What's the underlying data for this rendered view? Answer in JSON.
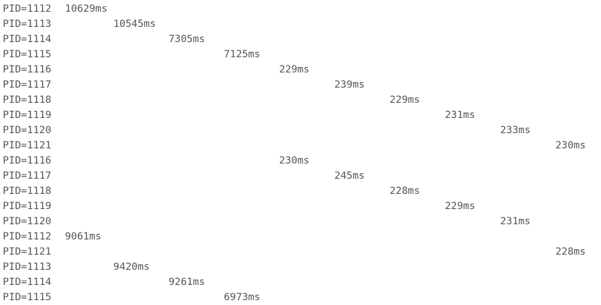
{
  "lines": [
    {
      "pid": "PID=1112",
      "time": "10629ms",
      "col": 0
    },
    {
      "pid": "PID=1113",
      "time": "10545ms",
      "col": 1
    },
    {
      "pid": "PID=1114",
      "time": "7305ms",
      "col": 2
    },
    {
      "pid": "PID=1115",
      "time": "7125ms",
      "col": 3
    },
    {
      "pid": "PID=1116",
      "time": "229ms",
      "col": 4
    },
    {
      "pid": "PID=1117",
      "time": "239ms",
      "col": 5
    },
    {
      "pid": "PID=1118",
      "time": "229ms",
      "col": 6
    },
    {
      "pid": "PID=1119",
      "time": "231ms",
      "col": 7
    },
    {
      "pid": "PID=1120",
      "time": "233ms",
      "col": 8
    },
    {
      "pid": "PID=1121",
      "time": "230ms",
      "col": 9
    },
    {
      "pid": "PID=1116",
      "time": "230ms",
      "col": 4
    },
    {
      "pid": "PID=1117",
      "time": "245ms",
      "col": 5
    },
    {
      "pid": "PID=1118",
      "time": "228ms",
      "col": 6
    },
    {
      "pid": "PID=1119",
      "time": "229ms",
      "col": 7
    },
    {
      "pid": "PID=1120",
      "time": "231ms",
      "col": 8
    },
    {
      "pid": "PID=1112",
      "time": "9061ms",
      "col": 0
    },
    {
      "pid": "PID=1121",
      "time": "228ms",
      "col": 9
    },
    {
      "pid": "PID=1113",
      "time": "9420ms",
      "col": 1
    },
    {
      "pid": "PID=1114",
      "time": "9261ms",
      "col": 2
    },
    {
      "pid": "PID=1115",
      "time": "6973ms",
      "col": 3
    }
  ]
}
